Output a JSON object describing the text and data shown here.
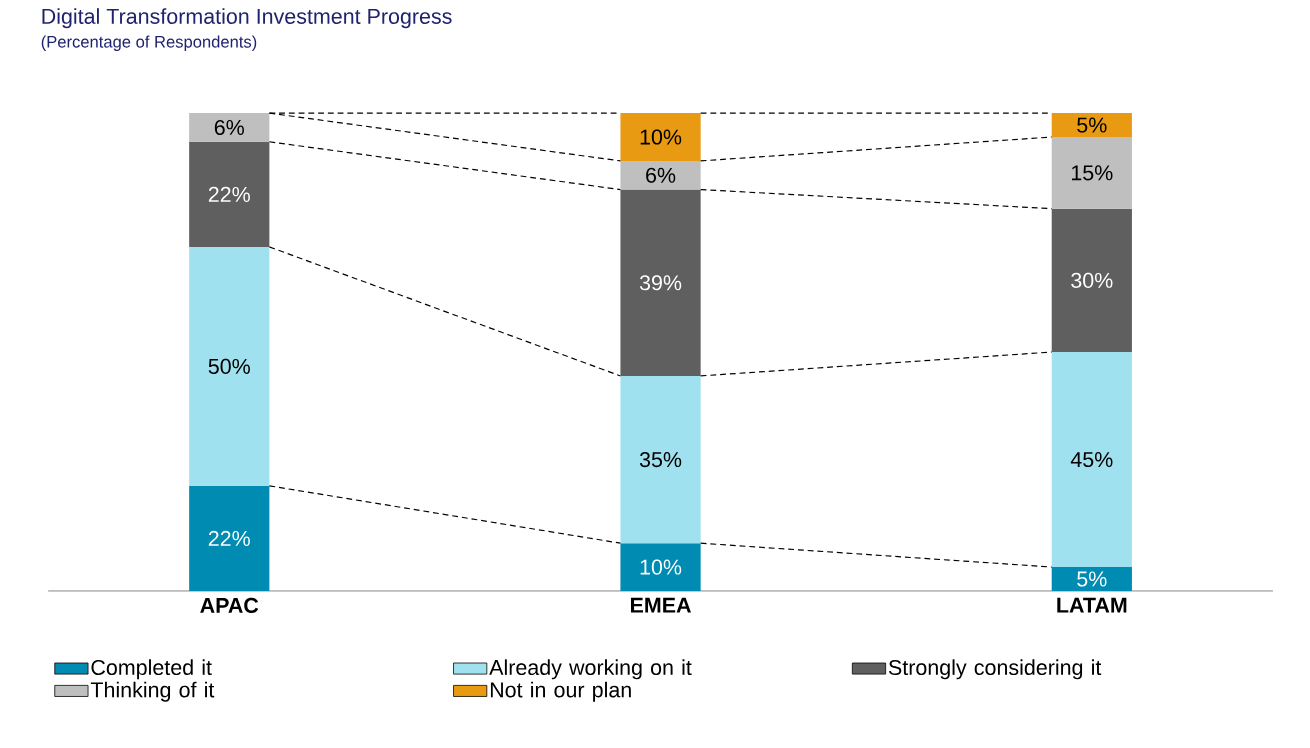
{
  "chart_data": {
    "type": "bar",
    "stacked": true,
    "title": "Digital Transformation Investment Progress",
    "subtitle": "(Percentage of Respondents)",
    "categories": [
      "APAC",
      "EMEA",
      "LATAM"
    ],
    "series": [
      {
        "name": "Completed it",
        "color": "#008bb2",
        "values": [
          22,
          10,
          5
        ],
        "value_labels": [
          "22%",
          "10%",
          "5%"
        ]
      },
      {
        "name": "Already working on it",
        "color": "#a0e1ef",
        "values": [
          50,
          35,
          45
        ],
        "value_labels": [
          "50%",
          "35%",
          "45%"
        ]
      },
      {
        "name": "Strongly considering it",
        "color": "#5f5f5f",
        "values": [
          22,
          39,
          30
        ],
        "value_labels": [
          "22%",
          "39%",
          "30%"
        ]
      },
      {
        "name": "Thinking of it",
        "color": "#bfbfbf",
        "values": [
          6,
          6,
          15
        ],
        "value_labels": [
          "6%",
          "6%",
          "15%"
        ]
      },
      {
        "name": "Not in our plan",
        "color": "#e89a12",
        "values": [
          null,
          10,
          5
        ],
        "value_labels": [
          null,
          "10%",
          "5%"
        ]
      }
    ],
    "legend": "bottom"
  }
}
